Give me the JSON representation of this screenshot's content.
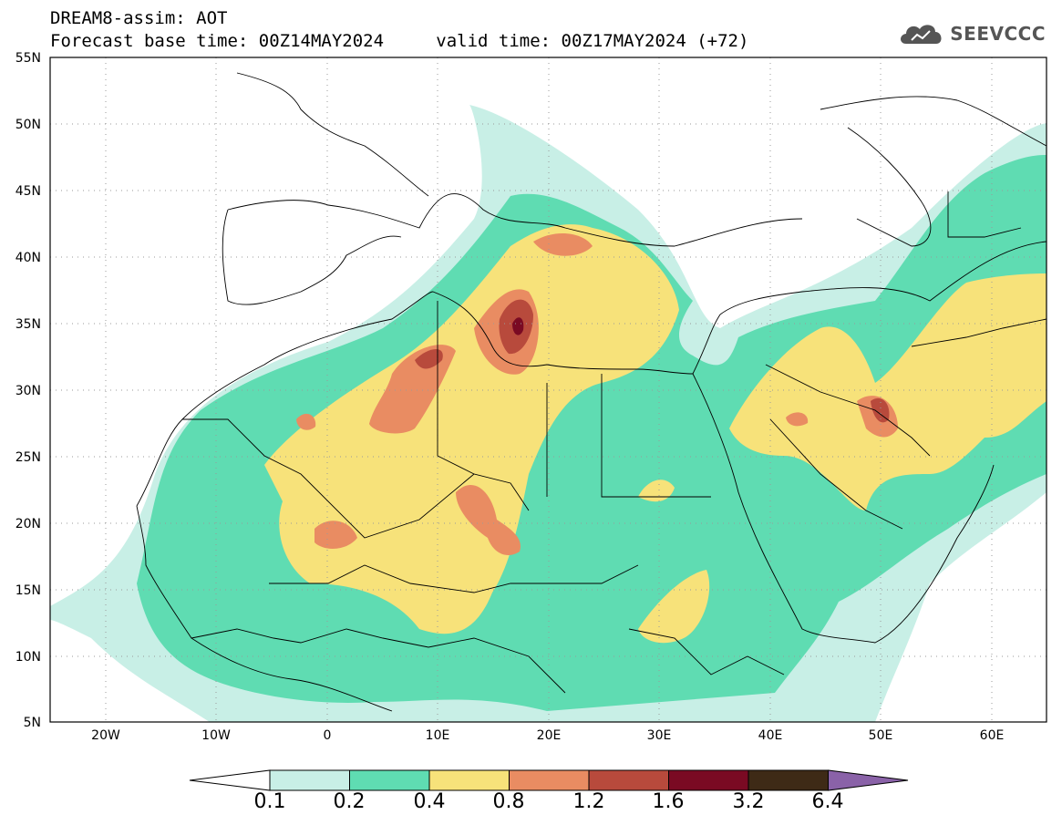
{
  "header": {
    "title_line1": "DREAM8-assim: AOT",
    "base_time": "Forecast base time: 00Z14MAY2024",
    "valid_time": "valid time: 00Z17MAY2024 (+72)"
  },
  "logo": {
    "icon": "cloud-icon",
    "text": "SEEVCCC"
  },
  "map": {
    "lat_ticks": [
      "55N",
      "50N",
      "45N",
      "40N",
      "35N",
      "30N",
      "25N",
      "20N",
      "15N",
      "10N",
      "5N"
    ],
    "lon_ticks": [
      "20W",
      "10W",
      "0",
      "10E",
      "20E",
      "30E",
      "40E",
      "50E",
      "60E"
    ],
    "grid": true
  },
  "colorbar": {
    "labels": [
      "0.1",
      "0.2",
      "0.4",
      "0.8",
      "1.2",
      "1.6",
      "3.2",
      "6.4"
    ],
    "colors": [
      "#ffffff",
      "#c8efe6",
      "#5fdcb2",
      "#f7e27a",
      "#e98c62",
      "#b84a3c",
      "#7a0a23",
      "#3e2a16",
      "#8a62a8"
    ]
  }
}
